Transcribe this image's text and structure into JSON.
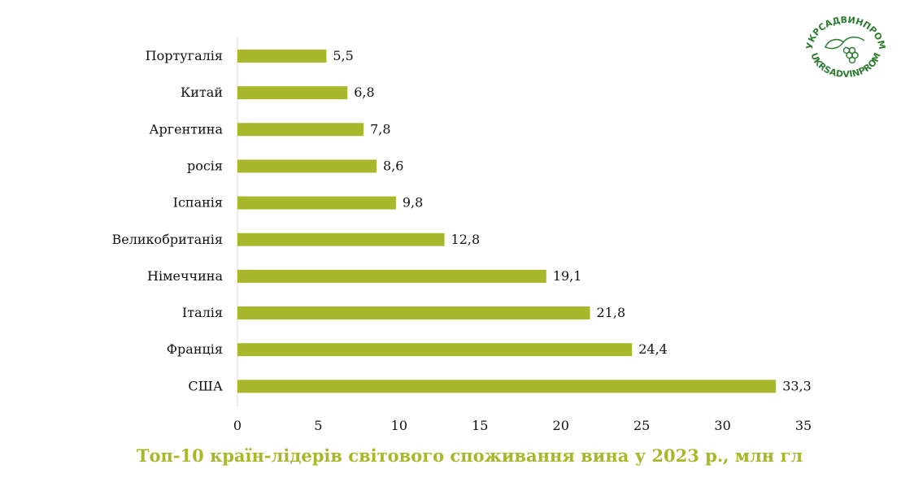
{
  "chart_data": {
    "type": "bar",
    "orientation": "horizontal",
    "title": "Топ-10 країн-лідерів світового споживання вина у 2023 р., млн гл",
    "categories": [
      "Португалія",
      "Китай",
      "Аргентина",
      "росія",
      "Іспанія",
      "Великобританія",
      "Німеччина",
      "Італія",
      "Франція",
      "США"
    ],
    "values": [
      5.5,
      6.8,
      7.8,
      8.6,
      9.8,
      12.8,
      19.1,
      21.8,
      24.4,
      33.3
    ],
    "value_labels": [
      "5,5",
      "6,8",
      "7,8",
      "8,6",
      "9,8",
      "12,8",
      "19,1",
      "21,8",
      "24,4",
      "33,3"
    ],
    "xlim": [
      0,
      35
    ],
    "xticks": [
      0,
      5,
      10,
      15,
      20,
      25,
      30,
      35
    ],
    "xlabel": "",
    "ylabel": "",
    "grid": false,
    "bar_color": "#a7b82a",
    "title_color": "#a7b82a"
  },
  "logo": {
    "text_top": "УКРСАДВИНПРОМ",
    "text_bottom": "UKRSADVINPROM",
    "color": "#2e7d32"
  }
}
